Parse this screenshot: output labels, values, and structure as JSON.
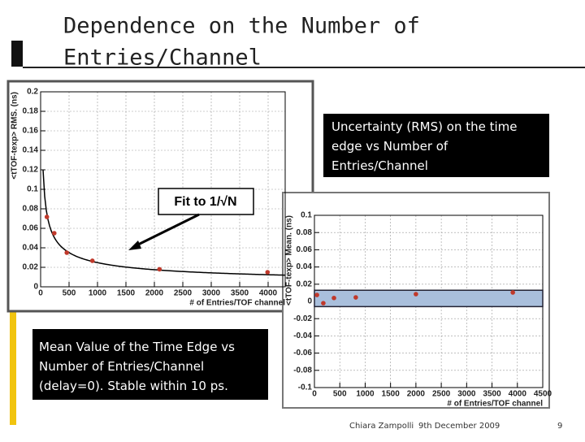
{
  "slide": {
    "title_lines": [
      "Dependence on the Number of",
      "Entries/Channel"
    ],
    "rms_caption": "Uncertainty (RMS) on the time edge vs Number of Entries/Channel",
    "mean_caption": "Mean Value of the Time Edge vs Number of Entries/Channel (delay=0). Stable within 10 ps.",
    "fit_label": "Fit to 1/√N",
    "author": "Chiara Zampolli",
    "date": "9th December 2009",
    "page": "9"
  },
  "chart_data": [
    {
      "type": "scatter",
      "x_label": "# of Entries/TOF channel",
      "y_label": "<tTOF-texp> RMS. (ns)",
      "x": [
        110,
        240,
        460,
        910,
        2090,
        3990
      ],
      "values": [
        0.0717,
        0.055,
        0.035,
        0.0267,
        0.018,
        0.015
      ],
      "color": "#c0392b",
      "fit": "inverse_sqrt",
      "xlim": [
        0,
        4300
      ],
      "xticks": [
        0,
        500,
        1000,
        1500,
        2000,
        2500,
        3000,
        3500,
        4000
      ],
      "ylim": [
        0,
        0.2
      ],
      "yticks": [
        0,
        0.02,
        0.04,
        0.06,
        0.08,
        0.1,
        0.12,
        0.14,
        0.16,
        0.18,
        0.2
      ],
      "grid": true
    },
    {
      "type": "scatter",
      "x_label": "# of Entries/TOF channel",
      "y_label": "<tTOF-texp> Mean. (ns)",
      "x": [
        50,
        175,
        385,
        815,
        2000,
        3910
      ],
      "values": [
        0.0075,
        -0.002,
        0.004,
        0.0047,
        0.0085,
        0.0104
      ],
      "color": "#c0392b",
      "band": [
        -0.006,
        0.013
      ],
      "band_color": "#a9bfdc",
      "xlim": [
        0,
        4500
      ],
      "xticks": [
        0,
        500,
        1000,
        1500,
        2000,
        2500,
        3000,
        3500,
        4000,
        4500
      ],
      "ylim": [
        -0.1,
        0.1
      ],
      "yticks": [
        -0.1,
        -0.08,
        -0.06,
        -0.04,
        -0.02,
        0,
        0.02,
        0.04,
        0.06,
        0.08,
        0.1
      ],
      "grid": true
    }
  ]
}
